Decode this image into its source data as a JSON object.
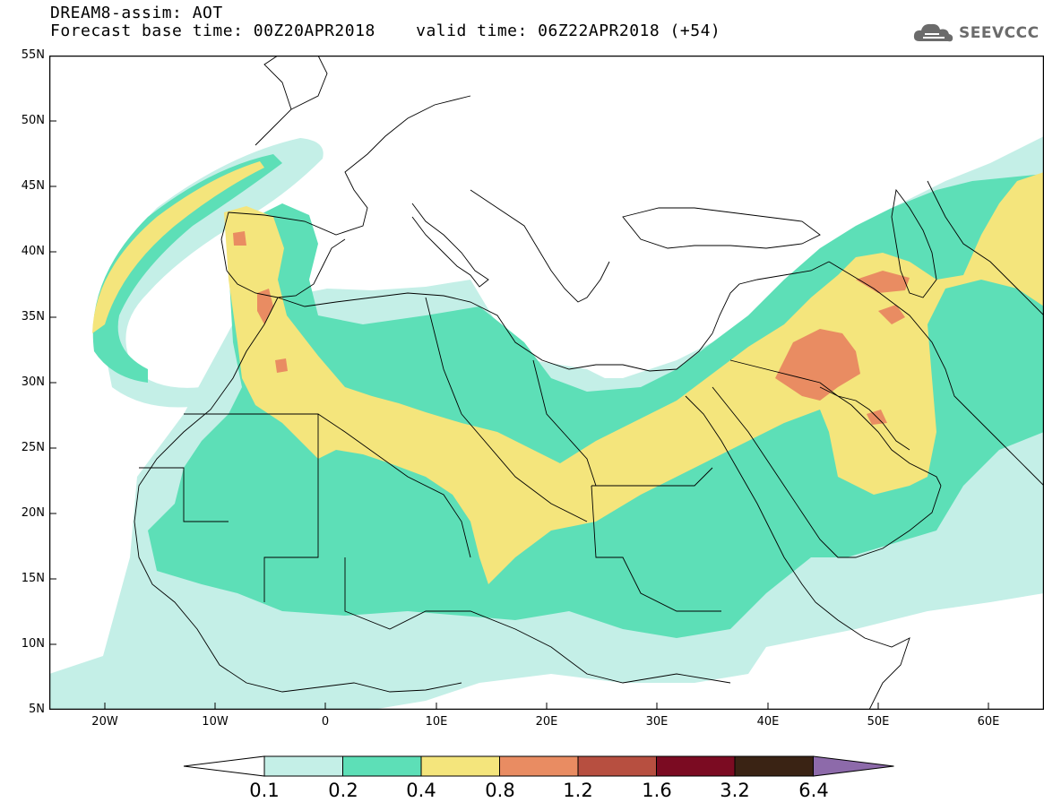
{
  "title": {
    "line1": "DREAM8-assim: AOT",
    "line2": "Forecast base time: 00Z20APR2018    valid time: 06Z22APR2018 (+54)"
  },
  "logo": {
    "icon": "cloud-icon",
    "text": "SEEVCCC"
  },
  "map": {
    "lon_range": [
      -25,
      65
    ],
    "lat_range": [
      5,
      55
    ],
    "lat_labels": [
      "55N",
      "50N",
      "45N",
      "40N",
      "35N",
      "30N",
      "25N",
      "20N",
      "15N",
      "10N",
      "5N"
    ],
    "lon_labels": [
      "20W",
      "10W",
      "0",
      "10E",
      "20E",
      "30E",
      "40E",
      "50E",
      "60E"
    ]
  },
  "colorbar": {
    "labels": [
      "0.1",
      "0.2",
      "0.4",
      "0.8",
      "1.2",
      "1.6",
      "3.2",
      "6.4"
    ],
    "colors": [
      "#ffffff",
      "#c4efe7",
      "#5ddfb7",
      "#f4e57c",
      "#e98c62",
      "#b74f40",
      "#7b0b22",
      "#3a2314",
      "#8d6aaa"
    ]
  }
}
